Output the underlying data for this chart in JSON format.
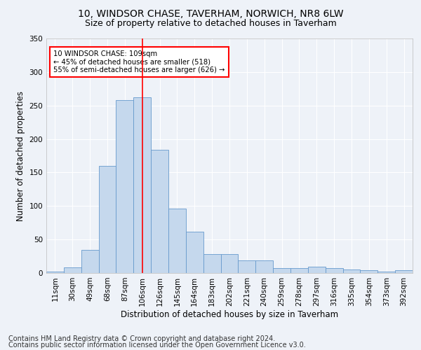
{
  "title1": "10, WINDSOR CHASE, TAVERHAM, NORWICH, NR8 6LW",
  "title2": "Size of property relative to detached houses in Taverham",
  "xlabel": "Distribution of detached houses by size in Taverham",
  "ylabel": "Number of detached properties",
  "bin_labels": [
    "11sqm",
    "30sqm",
    "49sqm",
    "68sqm",
    "87sqm",
    "106sqm",
    "126sqm",
    "145sqm",
    "164sqm",
    "183sqm",
    "202sqm",
    "221sqm",
    "240sqm",
    "259sqm",
    "278sqm",
    "297sqm",
    "316sqm",
    "335sqm",
    "354sqm",
    "373sqm",
    "392sqm"
  ],
  "bar_heights": [
    2,
    8,
    35,
    160,
    258,
    262,
    184,
    96,
    62,
    28,
    28,
    19,
    19,
    7,
    7,
    9,
    7,
    5,
    4,
    2,
    4
  ],
  "bar_color": "#c5d8ed",
  "bar_edgecolor": "#6699cc",
  "vline_bin_index": 5,
  "vline_color": "red",
  "annotation_text": "10 WINDSOR CHASE: 109sqm\n← 45% of detached houses are smaller (518)\n55% of semi-detached houses are larger (626) →",
  "annotation_box_edgecolor": "red",
  "annotation_box_facecolor": "white",
  "ylim": [
    0,
    350
  ],
  "yticks": [
    0,
    50,
    100,
    150,
    200,
    250,
    300,
    350
  ],
  "footer_line1": "Contains HM Land Registry data © Crown copyright and database right 2024.",
  "footer_line2": "Contains public sector information licensed under the Open Government Licence v3.0.",
  "background_color": "#eef2f8",
  "grid_color": "white",
  "title1_fontsize": 10,
  "title2_fontsize": 9,
  "axis_label_fontsize": 8.5,
  "tick_fontsize": 7.5,
  "footer_fontsize": 7
}
